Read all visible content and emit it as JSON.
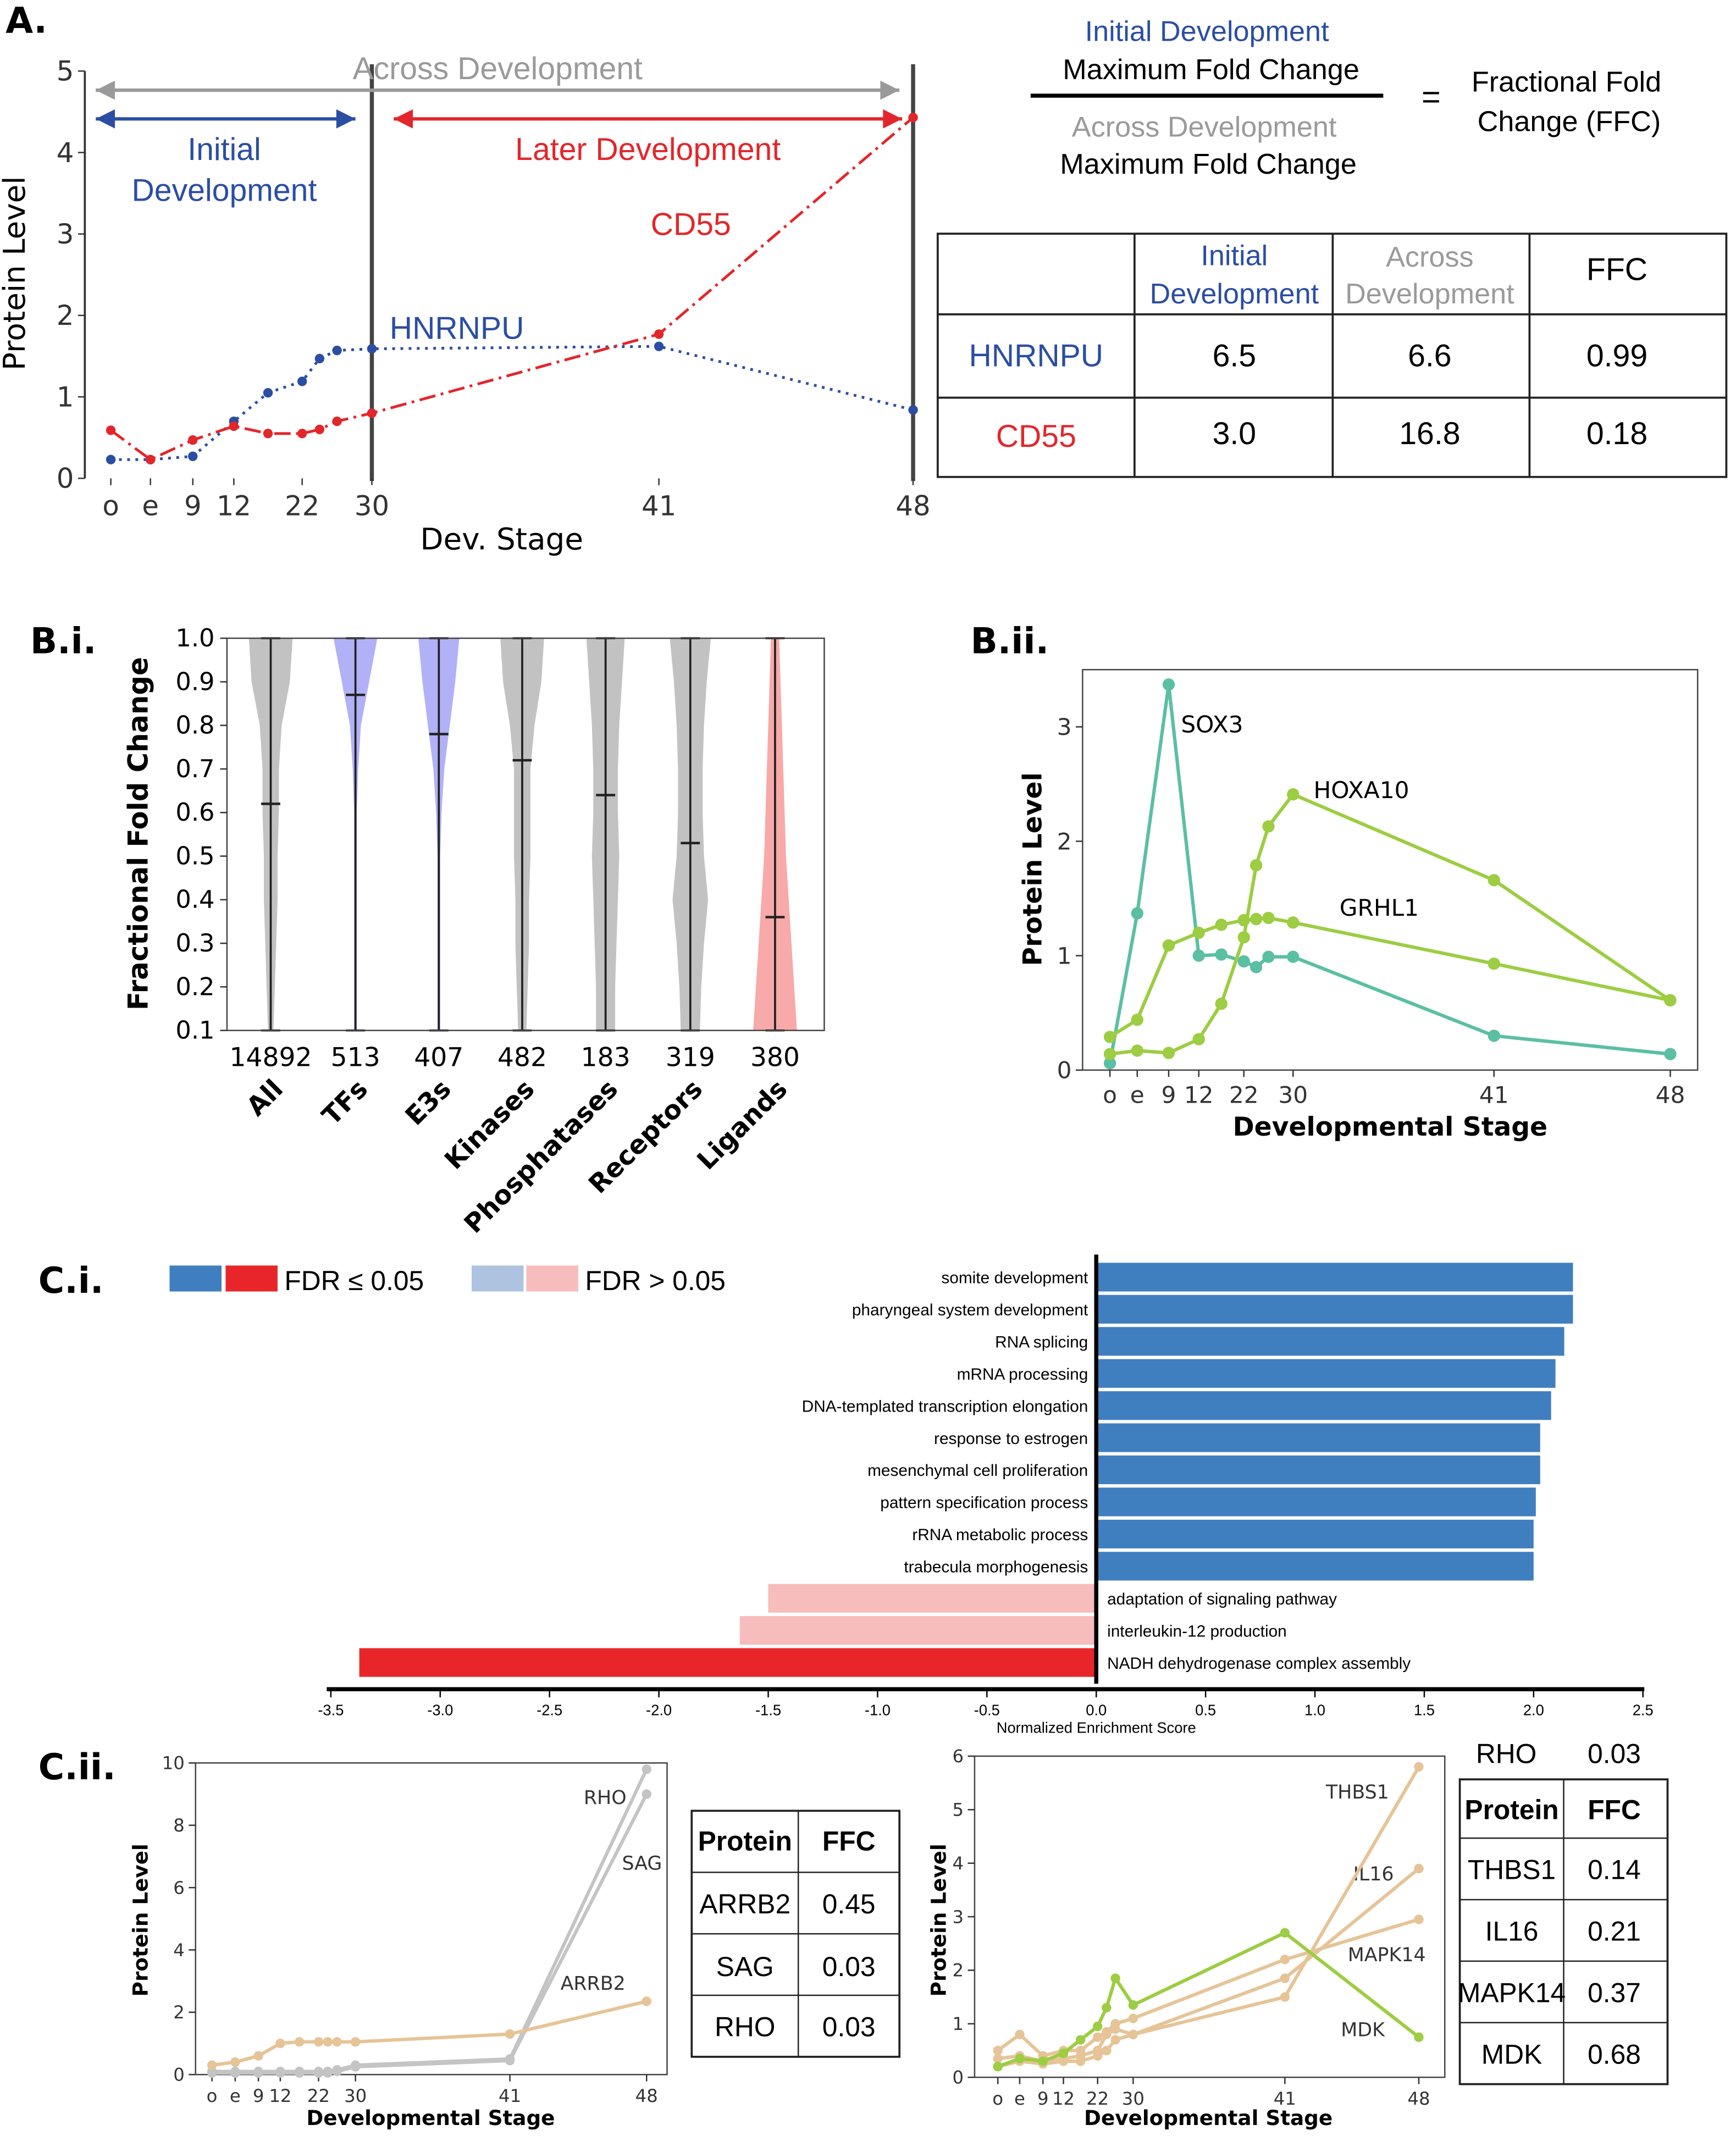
{
  "panel_labels": {
    "a": "A.",
    "bi": "B.i.",
    "bii": "B.ii.",
    "ci": "C.i.",
    "cii": "C.ii."
  },
  "panel_a": {
    "arrows": {
      "across": "Across Development",
      "initial_l1": "Initial",
      "initial_l2": "Development",
      "later": "Later Development"
    },
    "equation": {
      "num_l1": "Initial Development",
      "num_l2": "Maximum Fold Change",
      "den_l1": "Across Development",
      "den_l2": "Maximum Fold Change",
      "equals": "=",
      "result_l1": "Fractional Fold",
      "result_l2": "Change (FFC)"
    },
    "table": {
      "headers": [
        [
          "",
          ""
        ],
        [
          "Initial",
          "Development"
        ],
        [
          "Across",
          "Development"
        ],
        [
          "FFC",
          ""
        ]
      ],
      "rows": [
        {
          "protein": "HNRNPU",
          "initial": "6.5",
          "across": "6.6",
          "ffc": "0.99"
        },
        {
          "protein": "CD55",
          "initial": "3.0",
          "across": "16.8",
          "ffc": "0.18"
        }
      ]
    }
  },
  "colors": {
    "blue": "#2b4ea2",
    "red": "#e3262b",
    "gray": "#9a9a9a",
    "teal": "#5bbfa3",
    "green": "#9ccd42",
    "tan": "#e6c497",
    "lightgray": "#c4c4c4",
    "barblue": "#3f7fbf",
    "barred": "#e8262a",
    "barlightblue": "#adc3e0",
    "barpink": "#f7bcbc",
    "violin_gray": "#c2c2c2",
    "violin_blue": "#b1b1f7",
    "violin_red": "#f8a9a9"
  },
  "chart_data": [
    {
      "id": "A",
      "type": "line",
      "xlabel": "Dev. Stage",
      "ylabel": "Protein Level",
      "xticks": [
        "o",
        "e",
        "9",
        "12",
        "22",
        "30",
        "41",
        "48"
      ],
      "ylim": [
        0,
        5
      ],
      "yticks": [
        0,
        1,
        2,
        3,
        4,
        5
      ],
      "stages": [
        "o",
        "e",
        9,
        12,
        17,
        22,
        24,
        26,
        30,
        41,
        48
      ],
      "series": [
        {
          "name": "HNRNPU",
          "color": "#2b4ea2",
          "values": [
            0.23,
            0.23,
            0.27,
            0.7,
            1.05,
            1.19,
            1.47,
            1.57,
            1.59,
            1.62,
            0.84
          ]
        },
        {
          "name": "CD55",
          "color": "#e3262b",
          "values": [
            0.59,
            0.23,
            0.47,
            0.64,
            0.55,
            0.55,
            0.6,
            0.7,
            0.8,
            1.77,
            4.43
          ]
        }
      ]
    },
    {
      "id": "Bi",
      "type": "violin",
      "ylabel": "Fractional Fold Change",
      "ylim": [
        0.1,
        1.0
      ],
      "yticks": [
        "0.1",
        "0.2",
        "0.3",
        "0.4",
        "0.5",
        "0.6",
        "0.7",
        "0.8",
        "0.9",
        "1.0"
      ],
      "categories": [
        "All",
        "TFs",
        "E3s",
        "Kinases",
        "Phosphatases",
        "Receptors",
        "Ligands"
      ],
      "counts": [
        "14892",
        "513",
        "407",
        "482",
        "183",
        "319",
        "380"
      ],
      "medians": [
        0.62,
        0.87,
        0.78,
        0.72,
        0.64,
        0.53,
        0.36
      ],
      "colors": [
        "#c2c2c2",
        "#b1b1f7",
        "#b1b1f7",
        "#c2c2c2",
        "#c2c2c2",
        "#c2c2c2",
        "#f8a9a9"
      ]
    },
    {
      "id": "Bii",
      "type": "line",
      "xlabel": "Developmental Stage",
      "ylabel": "Protein Level",
      "xticks": [
        "o",
        "e",
        "9",
        "12",
        "22",
        "30",
        "41",
        "48"
      ],
      "ylim": [
        0,
        3.5
      ],
      "yticks": [
        0,
        1,
        2,
        3
      ],
      "stages": [
        "o",
        "e",
        9,
        12,
        17,
        22,
        24,
        26,
        30,
        41,
        48
      ],
      "series": [
        {
          "name": "SOX3",
          "color": "#5bbfa3",
          "values": [
            0.06,
            1.37,
            3.37,
            1.0,
            1.01,
            0.95,
            0.9,
            0.99,
            0.99,
            0.3,
            0.14
          ]
        },
        {
          "name": "HOXA10",
          "color": "#9ccd42",
          "values": [
            0.14,
            0.17,
            0.15,
            0.27,
            0.58,
            1.16,
            1.79,
            2.13,
            2.41,
            1.66,
            0.61
          ]
        },
        {
          "name": "GRHL1",
          "color": "#9ccd42",
          "values": [
            0.29,
            0.44,
            1.09,
            1.2,
            1.27,
            1.31,
            1.32,
            1.33,
            1.29,
            0.93,
            0.61
          ]
        }
      ]
    },
    {
      "id": "Ci",
      "type": "bar",
      "orientation": "horizontal",
      "xlabel": "Normalized Enrichment Score",
      "xlim": [
        -3.5,
        2.5
      ],
      "xticks": [
        "-3.5",
        "-3.0",
        "-2.5",
        "-2.0",
        "-1.5",
        "-1.0",
        "-0.5",
        "0.0",
        "0.5",
        "1.0",
        "1.5",
        "2.0",
        "2.5"
      ],
      "legend": [
        {
          "label": "FDR ≤ 0.05",
          "colors": [
            "#3f7fbf",
            "#e8262a"
          ]
        },
        {
          "label": "FDR > 0.05",
          "colors": [
            "#adc3e0",
            "#f7bcbc"
          ]
        }
      ],
      "categories": [
        "somite development",
        "pharyngeal system development",
        "RNA splicing",
        "mRNA processing",
        "DNA-templated transcription elongation",
        "response to estrogen",
        "mesenchymal cell proliferation",
        "pattern specification process",
        "rRNA metabolic process",
        "trabecula morphogenesis",
        "adaptation of signaling pathway",
        "interleukin-12 production",
        "NADH dehydrogenase complex assembly"
      ],
      "values": [
        2.18,
        2.18,
        2.14,
        2.1,
        2.08,
        2.03,
        2.03,
        2.01,
        2.0,
        2.0,
        -1.5,
        -1.63,
        -3.37
      ],
      "significant": [
        true,
        true,
        true,
        true,
        true,
        true,
        true,
        true,
        true,
        true,
        false,
        false,
        true
      ]
    },
    {
      "id": "Cii_left",
      "type": "line",
      "xlabel": "Developmental Stage",
      "ylabel": "Protein Level",
      "xticks": [
        "o",
        "e",
        "9",
        "12",
        "22",
        "30",
        "41",
        "48"
      ],
      "ylim": [
        0,
        10
      ],
      "yticks": [
        0,
        2,
        4,
        6,
        8,
        10
      ],
      "stages": [
        "o",
        "e",
        9,
        12,
        17,
        22,
        24,
        26,
        30,
        41,
        48
      ],
      "series": [
        {
          "name": "RHO",
          "color": "#c4c4c4",
          "values": [
            0.1,
            0.1,
            0.1,
            0.1,
            0.1,
            0.1,
            0.1,
            0.15,
            0.3,
            0.5,
            9.8
          ]
        },
        {
          "name": "SAG",
          "color": "#c4c4c4",
          "values": [
            0.05,
            0.05,
            0.05,
            0.05,
            0.05,
            0.05,
            0.05,
            0.1,
            0.25,
            0.45,
            9.0
          ]
        },
        {
          "name": "ARRB2",
          "color": "#e6c497",
          "values": [
            0.3,
            0.4,
            0.6,
            1.0,
            1.05,
            1.05,
            1.05,
            1.05,
            1.05,
            1.3,
            2.35
          ]
        }
      ],
      "table": {
        "headers": [
          "Protein",
          "FFC"
        ],
        "rows": [
          [
            "ARRB2",
            "0.45"
          ],
          [
            "SAG",
            "0.03"
          ],
          [
            "RHO",
            "0.03"
          ]
        ]
      }
    },
    {
      "id": "Cii_right",
      "type": "line",
      "xlabel": "Developmental Stage",
      "ylabel": "Protein Level",
      "xticks": [
        "o",
        "e",
        "9",
        "12",
        "22",
        "30",
        "41",
        "48"
      ],
      "ylim": [
        0,
        6
      ],
      "yticks": [
        0,
        1,
        2,
        3,
        4,
        5,
        6
      ],
      "stages": [
        "o",
        "e",
        9,
        12,
        17,
        22,
        24,
        26,
        30,
        41,
        48
      ],
      "series": [
        {
          "name": "THBS1",
          "color": "#e6c497",
          "values": [
            0.2,
            0.3,
            0.25,
            0.3,
            0.3,
            0.4,
            0.5,
            0.7,
            0.8,
            1.5,
            5.8
          ]
        },
        {
          "name": "IL16",
          "color": "#e6c497",
          "values": [
            0.35,
            0.4,
            0.3,
            0.35,
            0.4,
            0.5,
            0.8,
            0.9,
            0.8,
            1.85,
            3.9
          ]
        },
        {
          "name": "MAPK14",
          "color": "#e6c497",
          "values": [
            0.5,
            0.8,
            0.4,
            0.5,
            0.5,
            0.75,
            0.85,
            1.0,
            1.1,
            2.2,
            2.95
          ]
        },
        {
          "name": "MDK",
          "color": "#9ccd42",
          "values": [
            0.2,
            0.35,
            0.3,
            0.45,
            0.7,
            0.95,
            1.3,
            1.85,
            1.35,
            2.7,
            0.75
          ]
        }
      ],
      "extra_row": [
        "RHO",
        "0.03"
      ],
      "table": {
        "headers": [
          "Protein",
          "FFC"
        ],
        "rows": [
          [
            "THBS1",
            "0.14"
          ],
          [
            "IL16",
            "0.21"
          ],
          [
            "MAPK14",
            "0.37"
          ],
          [
            "MDK",
            "0.68"
          ]
        ]
      }
    }
  ]
}
